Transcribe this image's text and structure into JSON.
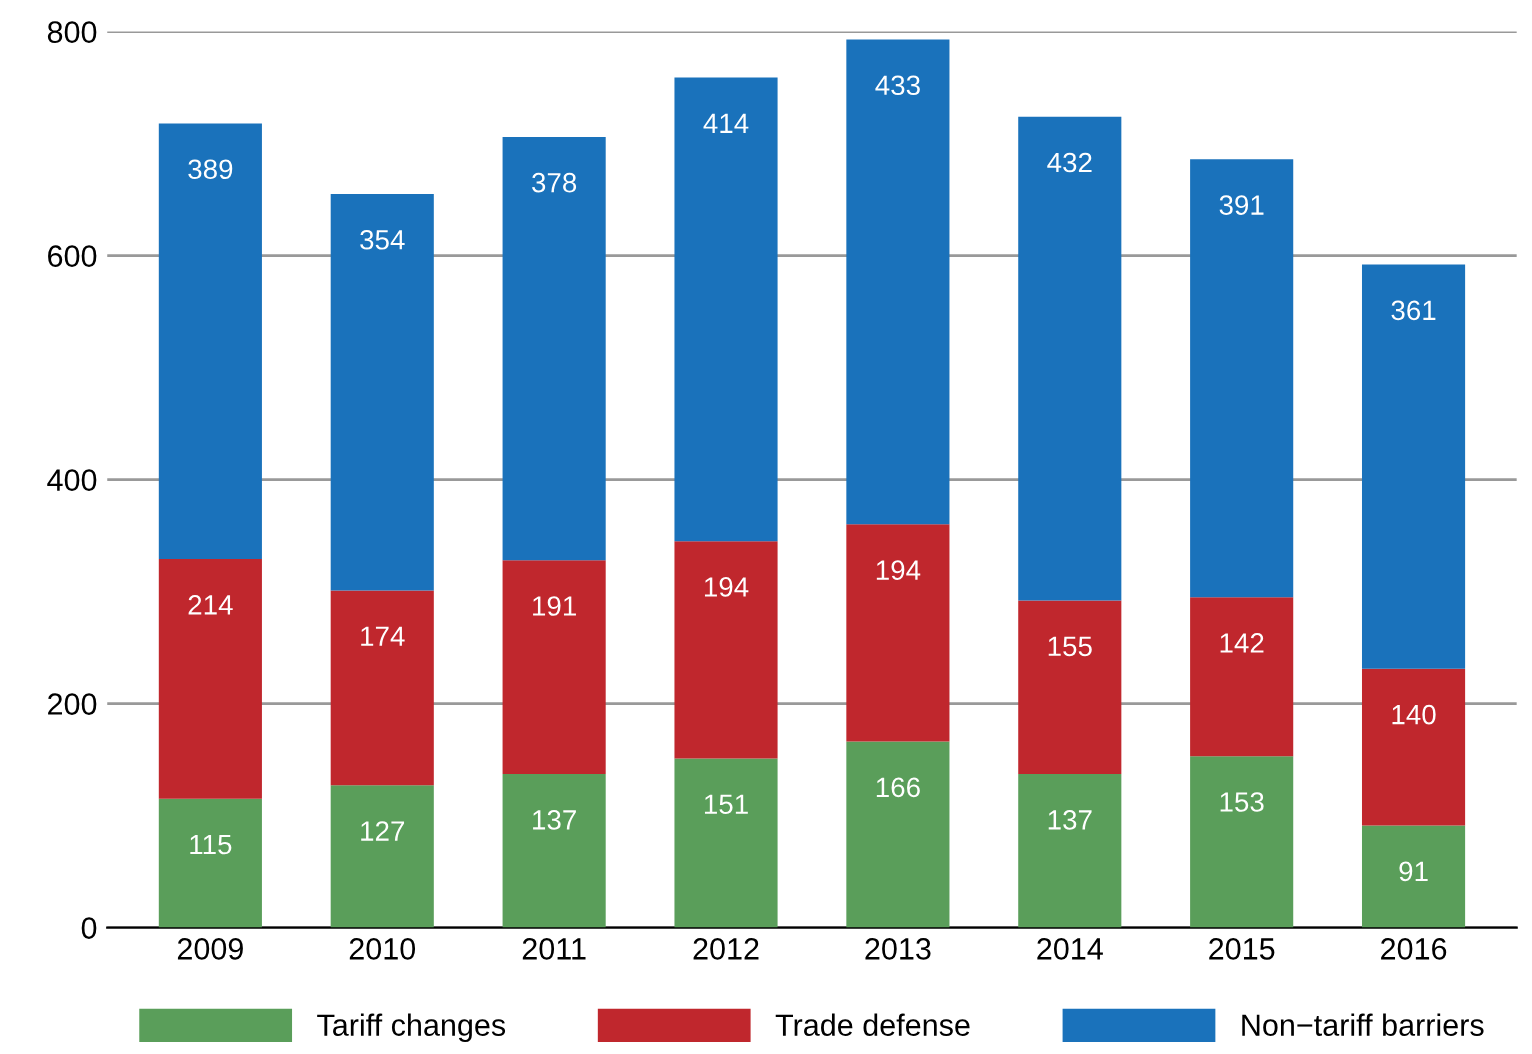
{
  "chart_data": {
    "type": "bar",
    "stacked": true,
    "categories": [
      "2009",
      "2010",
      "2011",
      "2012",
      "2013",
      "2014",
      "2015",
      "2016"
    ],
    "series": [
      {
        "name": "Tariff changes",
        "color": "#5a9e5a",
        "values": [
          115,
          127,
          137,
          151,
          166,
          137,
          153,
          91
        ]
      },
      {
        "name": "Trade defense",
        "color": "#c0272d",
        "values": [
          214,
          174,
          191,
          194,
          194,
          155,
          142,
          140
        ]
      },
      {
        "name": "Non−tariff barriers",
        "color": "#1a72bb",
        "values": [
          389,
          354,
          378,
          414,
          433,
          432,
          391,
          361
        ]
      }
    ],
    "ylim": [
      0,
      800
    ],
    "yticks": [
      0,
      200,
      400,
      600,
      800
    ],
    "grid": "y",
    "data_labels": true,
    "legend": "bottom"
  }
}
